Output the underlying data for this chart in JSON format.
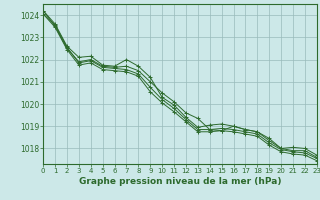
{
  "title": "Graphe pression niveau de la mer (hPa)",
  "xlim": [
    0,
    23
  ],
  "ylim": [
    1017.3,
    1024.5
  ],
  "yticks": [
    1018,
    1019,
    1020,
    1021,
    1022,
    1023,
    1024
  ],
  "xticks": [
    0,
    1,
    2,
    3,
    4,
    5,
    6,
    7,
    8,
    9,
    10,
    11,
    12,
    13,
    14,
    15,
    16,
    17,
    18,
    19,
    20,
    21,
    22,
    23
  ],
  "bg_color": "#cce8e8",
  "grid_color": "#99bbbb",
  "line_color": "#2d6a2d",
  "marker": "+",
  "series": [
    [
      1024.2,
      1023.5,
      1022.5,
      1021.9,
      1022.0,
      1021.7,
      1021.65,
      1021.7,
      1021.5,
      1021.0,
      1020.5,
      1020.1,
      1019.6,
      1019.35,
      1018.85,
      1018.8,
      1019.0,
      1018.85,
      1018.75,
      1018.45,
      1018.0,
      1017.9,
      1017.9,
      1017.6
    ],
    [
      1024.2,
      1023.6,
      1022.6,
      1022.1,
      1022.15,
      1021.75,
      1021.7,
      1022.0,
      1021.7,
      1021.2,
      1020.3,
      1019.95,
      1019.4,
      1018.95,
      1019.05,
      1019.1,
      1019.0,
      1018.85,
      1018.75,
      1018.35,
      1018.0,
      1018.05,
      1018.0,
      1017.7
    ],
    [
      1024.05,
      1023.55,
      1022.55,
      1021.85,
      1021.95,
      1021.65,
      1021.6,
      1021.55,
      1021.35,
      1020.75,
      1020.2,
      1019.8,
      1019.3,
      1018.85,
      1018.85,
      1018.9,
      1018.85,
      1018.75,
      1018.65,
      1018.25,
      1017.95,
      1017.85,
      1017.8,
      1017.55
    ],
    [
      1024.05,
      1023.45,
      1022.45,
      1021.75,
      1021.85,
      1021.55,
      1021.5,
      1021.45,
      1021.25,
      1020.55,
      1020.05,
      1019.65,
      1019.2,
      1018.75,
      1018.75,
      1018.8,
      1018.75,
      1018.65,
      1018.55,
      1018.15,
      1017.85,
      1017.75,
      1017.7,
      1017.45
    ]
  ]
}
